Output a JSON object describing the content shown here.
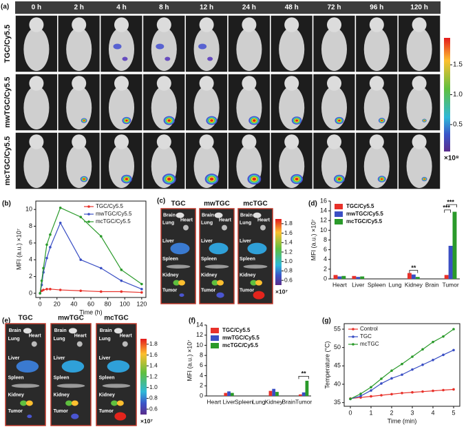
{
  "figure_a": {
    "panel_label": "(a)",
    "times": [
      "0 h",
      "2 h",
      "4 h",
      "8 h",
      "12 h",
      "24 h",
      "48 h",
      "72 h",
      "96 h",
      "120 h"
    ],
    "rows": [
      "TGC/Cy5.5",
      "mwTGC/Cy5.5",
      "mcTGC/Cy5.5"
    ],
    "colorbar": {
      "lim": [
        0.05,
        1.95
      ],
      "ticks": [
        0.5,
        {
          "value": 1,
          "label": "1.0"
        },
        1.5
      ],
      "unit": "×10⁸"
    }
  },
  "figure_c": {
    "panel_label": "(c)",
    "titles": [
      "TGC",
      "mwTGC",
      "mcTGC"
    ],
    "organs": [
      "Brain",
      "Lung",
      "Heart",
      "Liver",
      "Spleen",
      "Kidney",
      "Tumor"
    ],
    "colorbar": {
      "lim": [
        0.5,
        1.9
      ],
      "ticks": [
        0.6,
        0.8,
        {
          "value": 1,
          "label": "1.0"
        },
        1.2,
        1.4,
        1.6,
        1.8
      ],
      "unit": "×10⁷"
    }
  },
  "figure_e": {
    "panel_label": "(e)",
    "titles": [
      "TGC",
      "mwTGC",
      "mcTGC"
    ],
    "organs": [
      "Brain",
      "Lung",
      "Heart",
      "Liver",
      "Spleen",
      "Kidney",
      "Tumor"
    ],
    "colorbar": {
      "lim": [
        0.5,
        1.9
      ],
      "ticks": [
        0.6,
        0.8,
        {
          "value": 1,
          "label": "1.0"
        },
        1.2,
        1.4,
        1.6,
        1.8
      ],
      "unit": "×10⁷"
    }
  },
  "chart_data": [
    {
      "type": "line",
      "panel_label": "(b)",
      "xlabel": "Time (h)",
      "ylabel": "MFI (a.u.) ×10⁷",
      "x": [
        0,
        2,
        4,
        8,
        12,
        24,
        48,
        72,
        96,
        120
      ],
      "xlim": [
        -5,
        125
      ],
      "xticks": [
        0,
        20,
        40,
        60,
        80,
        100,
        120
      ],
      "ylim": [
        -0.5,
        11
      ],
      "yticks": [
        0,
        2,
        4,
        6,
        8,
        10
      ],
      "legend": "upper right",
      "series": [
        {
          "name": "TGC/Cy5.5",
          "color": "#e8312a",
          "values": [
            0,
            0.3,
            0.4,
            0.5,
            0.5,
            0.4,
            0.3,
            0.2,
            0.2,
            0.1
          ]
        },
        {
          "name": "mwTGC/Cy5.5",
          "color": "#3a4fc4",
          "values": [
            0,
            1.0,
            2.5,
            4.2,
            5.5,
            8.4,
            4.0,
            3.0,
            1.5,
            0.5
          ]
        },
        {
          "name": "mcTGC/Cy5.5",
          "color": "#2a9a2a",
          "values": [
            0,
            1.5,
            3.0,
            5.8,
            7.0,
            10.2,
            9.1,
            6.8,
            2.8,
            1.1
          ]
        }
      ]
    },
    {
      "type": "bar",
      "panel_label": "(d)",
      "ylabel": "MFI (a.u.) ×10⁷",
      "categories": [
        "Heart",
        "Liver",
        "Spleen",
        "Lung",
        "Kidney",
        "Brain",
        "Tumor"
      ],
      "ylim": [
        0,
        16
      ],
      "yticks": [
        0,
        2,
        4,
        6,
        8,
        10,
        12,
        14,
        16
      ],
      "legend": "upper left",
      "annotations": [
        "**",
        "***",
        "***"
      ],
      "series": [
        {
          "name": "TGC/Cy5.5",
          "color": "#e8312a",
          "values": [
            0.8,
            0.6,
            0,
            0,
            1.2,
            0,
            0.8
          ]
        },
        {
          "name": "mwTGC/Cy5.5",
          "color": "#3a4fc4",
          "values": [
            0.5,
            0.4,
            0,
            0,
            0.9,
            0,
            6.8
          ]
        },
        {
          "name": "mcTGC/Cy5.5",
          "color": "#2a9a2a",
          "values": [
            0.6,
            0.5,
            0,
            0,
            0.4,
            0,
            13.8
          ]
        }
      ]
    },
    {
      "type": "bar",
      "panel_label": "(f)",
      "ylabel": "MFI (a.u.) ×10⁷",
      "categories": [
        "Heart",
        "Liver",
        "Spleen",
        "Lung",
        "Kidney",
        "Brain",
        "Tumor"
      ],
      "ylim": [
        0,
        14
      ],
      "yticks": [
        0,
        2,
        4,
        6,
        8,
        10,
        12,
        14
      ],
      "legend": "upper left",
      "annotations": [
        "**"
      ],
      "series": [
        {
          "name": "TGC/Cy5.5",
          "color": "#e8312a",
          "values": [
            0,
            0.6,
            0,
            0,
            1.0,
            0,
            0.3
          ]
        },
        {
          "name": "mwTGC/Cy5.5",
          "color": "#3a4fc4",
          "values": [
            0,
            0.9,
            0,
            0,
            1.4,
            0,
            0.7
          ]
        },
        {
          "name": "mcTGC/Cy5.5",
          "color": "#2a9a2a",
          "values": [
            0,
            0.6,
            0,
            0,
            0.8,
            0,
            3.0
          ]
        }
      ]
    },
    {
      "type": "line",
      "panel_label": "(g)",
      "xlabel": "Time (min)",
      "ylabel": "Temperature (°C)",
      "x": [
        0,
        0.5,
        1,
        1.5,
        2,
        2.5,
        3,
        3.5,
        4,
        4.5,
        5
      ],
      "xlim": [
        -0.3,
        5.3
      ],
      "xticks": [
        0,
        1,
        2,
        3,
        4,
        5
      ],
      "ylim": [
        34,
        56.5
      ],
      "yticks": [
        35,
        40,
        45,
        50,
        55
      ],
      "legend": "upper left",
      "series": [
        {
          "name": "Control",
          "color": "#e8312a",
          "values": [
            36.1,
            36.4,
            36.7,
            37.0,
            37.3,
            37.6,
            37.8,
            38.0,
            38.2,
            38.4,
            38.6
          ]
        },
        {
          "name": "TGC",
          "color": "#3a4fc4",
          "values": [
            36.0,
            36.8,
            38.3,
            40.2,
            41.6,
            42.6,
            44.0,
            45.3,
            46.6,
            48.0,
            49.3
          ]
        },
        {
          "name": "mcTGC",
          "color": "#2a9a2a",
          "values": [
            36.0,
            37.4,
            39.2,
            41.5,
            43.7,
            45.5,
            47.5,
            49.5,
            51.5,
            53.0,
            55.0
          ]
        }
      ]
    }
  ]
}
